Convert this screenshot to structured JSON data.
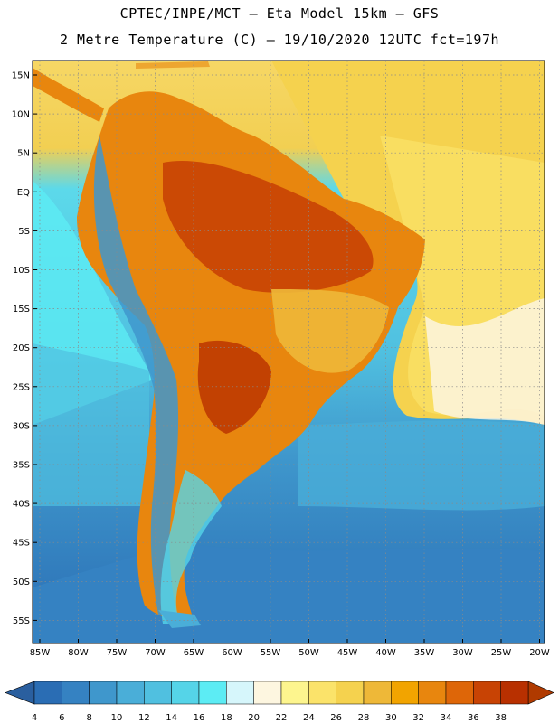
{
  "header": {
    "line1": "CPTEC/INPE/MCT  –   Eta Model 15km  –  GFS",
    "line2": "2 Metre Temperature (C) – 19/10/2020 12UTC fct=197h"
  },
  "map": {
    "lat_labels": [
      "15N",
      "10N",
      "5N",
      "EQ",
      "5S",
      "10S",
      "15S",
      "20S",
      "25S",
      "30S",
      "35S",
      "40S",
      "45S",
      "50S",
      "55S"
    ],
    "lon_labels": [
      "85W",
      "80W",
      "75W",
      "70W",
      "65W",
      "60W",
      "55W",
      "50W",
      "45W",
      "40W",
      "35W",
      "30W",
      "25W",
      "20W"
    ]
  },
  "colorbar": {
    "labels": [
      "4",
      "6",
      "8",
      "10",
      "12",
      "14",
      "16",
      "18",
      "20",
      "22",
      "24",
      "26",
      "28",
      "30",
      "32",
      "34",
      "36",
      "38"
    ],
    "colors": [
      "#2a6db4",
      "#3582c2",
      "#3f97cc",
      "#4aaed8",
      "#50c0e0",
      "#55d4e8",
      "#5cecf4",
      "#d6f6fb",
      "#fdf6e0",
      "#fdf58e",
      "#fbe36a",
      "#f5d24e",
      "#eeb838",
      "#f2a400",
      "#e8860e",
      "#de6608",
      "#c84304",
      "#b83000"
    ],
    "low_color": "#2a5f9f",
    "high_color": "#b03a00"
  }
}
